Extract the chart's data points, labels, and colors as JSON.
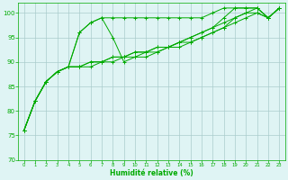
{
  "xlabel": "Humidité relative (%)",
  "background_color": "#dff4f4",
  "grid_color": "#aacccc",
  "line_color": "#00aa00",
  "xlim": [
    -0.5,
    23.5
  ],
  "ylim": [
    70,
    102
  ],
  "yticks": [
    70,
    75,
    80,
    85,
    90,
    95,
    100
  ],
  "xticks": [
    0,
    1,
    2,
    3,
    4,
    5,
    6,
    7,
    8,
    9,
    10,
    11,
    12,
    13,
    14,
    15,
    16,
    17,
    18,
    19,
    20,
    21,
    22,
    23
  ],
  "series": [
    [
      76,
      82,
      86,
      88,
      89,
      96,
      98,
      99,
      99,
      99,
      99,
      99,
      99,
      99,
      99,
      99,
      99,
      100,
      101,
      101,
      101,
      101,
      99,
      101
    ],
    [
      76,
      82,
      86,
      88,
      89,
      96,
      98,
      99,
      95,
      90,
      91,
      91,
      92,
      93,
      94,
      95,
      96,
      97,
      99,
      101,
      101,
      101,
      99,
      101
    ],
    [
      76,
      82,
      86,
      88,
      89,
      89,
      90,
      90,
      91,
      91,
      92,
      92,
      93,
      93,
      94,
      95,
      96,
      97,
      98,
      99,
      100,
      101,
      99,
      101
    ],
    [
      76,
      82,
      86,
      88,
      89,
      89,
      90,
      90,
      91,
      91,
      92,
      92,
      93,
      93,
      94,
      94,
      95,
      96,
      97,
      99,
      100,
      100,
      99,
      101
    ],
    [
      76,
      82,
      86,
      88,
      89,
      89,
      89,
      90,
      90,
      91,
      91,
      92,
      92,
      93,
      93,
      94,
      95,
      96,
      97,
      98,
      99,
      100,
      99,
      101
    ]
  ]
}
